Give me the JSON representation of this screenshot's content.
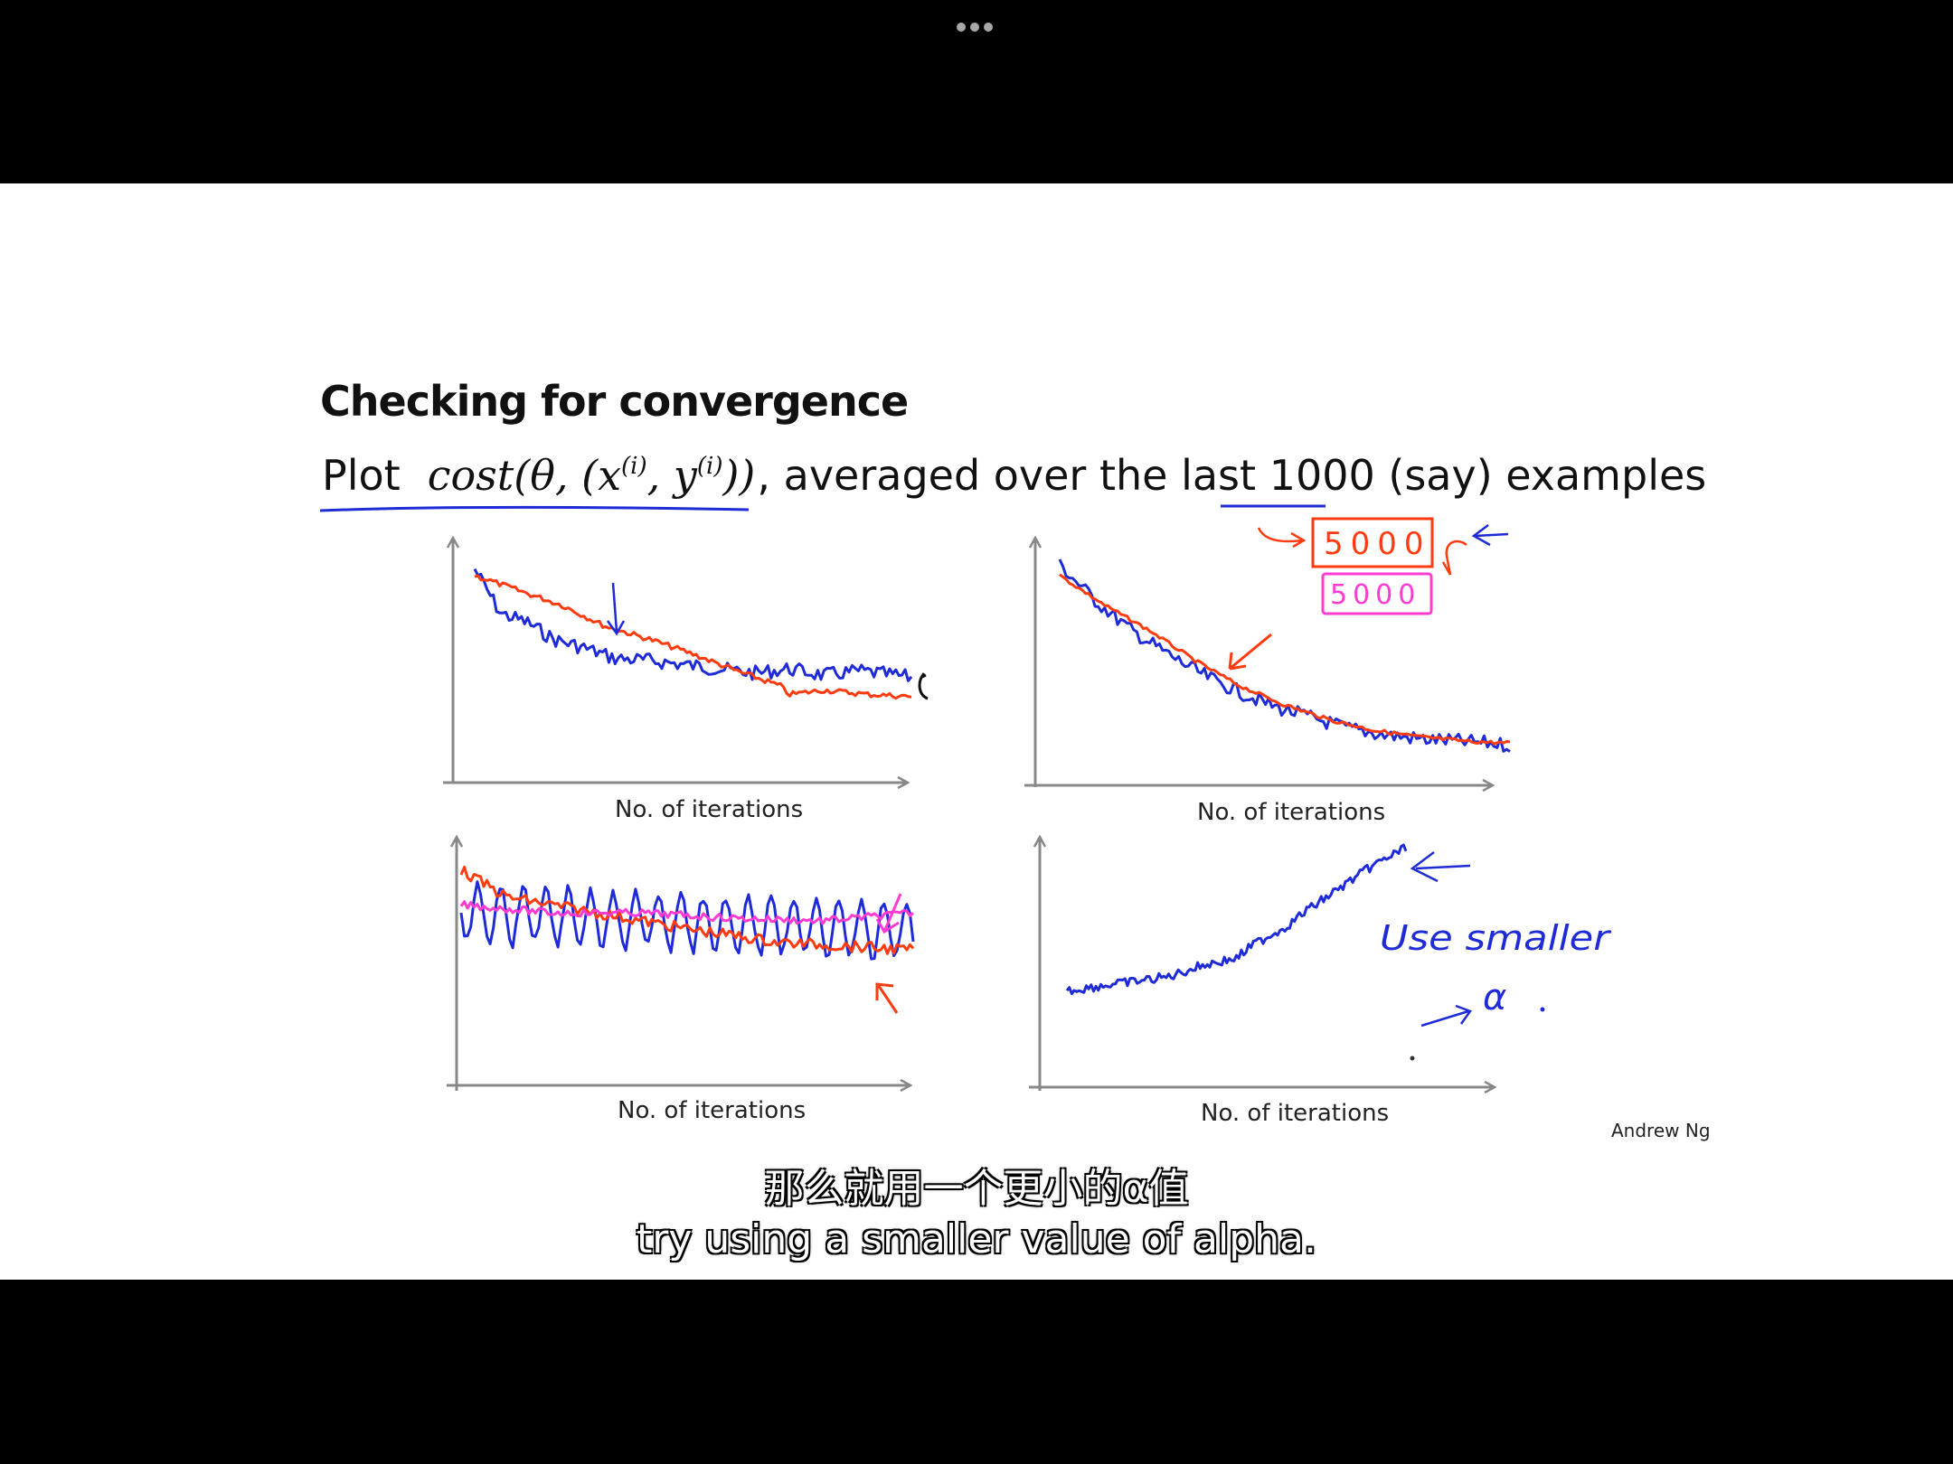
{
  "player": {
    "menu_icon": "ellipsis-icon"
  },
  "slide": {
    "title": "Checking for convergence",
    "plot_word": "Plot",
    "cost_prefix": "cost(θ, (x",
    "sup_i": "(i)",
    "cost_mid": ", y",
    "cost_suffix": "))",
    "averaged_text": ", averaged over the last ",
    "count": "1000",
    "tail_text": " (say) examples",
    "author": "Andrew Ng"
  },
  "annotations": {
    "box_red": "5000",
    "box_pink": "5000",
    "use_smaller": "Use smaller",
    "alpha_symbol": "α"
  },
  "chart_data": [
    {
      "type": "line",
      "xlabel": "No. of iterations",
      "ylabel": "",
      "grid": false,
      "series": [
        {
          "color": "#1f2bd6",
          "x": [
            0,
            6,
            12,
            18,
            25,
            32,
            40,
            48,
            56,
            64,
            72,
            80,
            88,
            96,
            100
          ],
          "y": [
            0.95,
            0.74,
            0.7,
            0.62,
            0.58,
            0.53,
            0.52,
            0.5,
            0.48,
            0.46,
            0.48,
            0.45,
            0.47,
            0.45,
            0.44
          ]
        },
        {
          "color": "#ff3b10",
          "x": [
            0,
            10,
            20,
            30,
            40,
            50,
            60,
            70,
            72,
            80,
            90,
            100
          ],
          "y": [
            0.92,
            0.85,
            0.78,
            0.68,
            0.62,
            0.55,
            0.47,
            0.4,
            0.36,
            0.38,
            0.36,
            0.35
          ]
        }
      ]
    },
    {
      "type": "line",
      "xlabel": "No. of iterations",
      "ylabel": "",
      "grid": false,
      "series": [
        {
          "color": "#1f2bd6",
          "x": [
            0,
            8,
            16,
            24,
            32,
            40,
            48,
            56,
            64,
            72,
            80,
            88,
            96,
            100
          ],
          "y": [
            0.97,
            0.8,
            0.66,
            0.55,
            0.45,
            0.37,
            0.3,
            0.25,
            0.2,
            0.17,
            0.15,
            0.14,
            0.13,
            0.12
          ]
        },
        {
          "color": "#ff3b10",
          "x": [
            0,
            10,
            20,
            30,
            40,
            50,
            60,
            70,
            80,
            90,
            100
          ],
          "y": [
            0.92,
            0.78,
            0.66,
            0.52,
            0.4,
            0.31,
            0.24,
            0.19,
            0.16,
            0.14,
            0.13
          ]
        }
      ]
    },
    {
      "type": "line",
      "xlabel": "No. of iterations",
      "ylabel": "",
      "grid": false,
      "series": [
        {
          "color": "#1f2bd6",
          "x": [
            0,
            100
          ],
          "y": [
            0.62,
            0.55
          ]
        },
        {
          "color": "#ff3b10",
          "x": [
            0,
            10,
            30,
            50,
            70,
            90,
            100
          ],
          "y": [
            0.78,
            0.68,
            0.62,
            0.56,
            0.51,
            0.49,
            0.48
          ]
        },
        {
          "color": "#ff3bd2",
          "x": [
            0,
            20,
            40,
            60,
            80,
            100
          ],
          "y": [
            0.65,
            0.62,
            0.62,
            0.6,
            0.59,
            0.62
          ]
        }
      ]
    },
    {
      "type": "line",
      "xlabel": "No. of iterations",
      "ylabel": "",
      "grid": false,
      "series": [
        {
          "color": "#1f2bd6",
          "x": [
            0,
            10,
            20,
            30,
            40,
            50,
            55,
            60,
            65,
            70,
            80,
            90,
            100
          ],
          "y": [
            0.38,
            0.4,
            0.42,
            0.44,
            0.49,
            0.52,
            0.58,
            0.62,
            0.66,
            0.72,
            0.82,
            0.92,
            1.0
          ]
        }
      ]
    }
  ],
  "subtitles": {
    "chinese": "那么就用一个更小的α值",
    "english": "try using a smaller value of alpha."
  }
}
